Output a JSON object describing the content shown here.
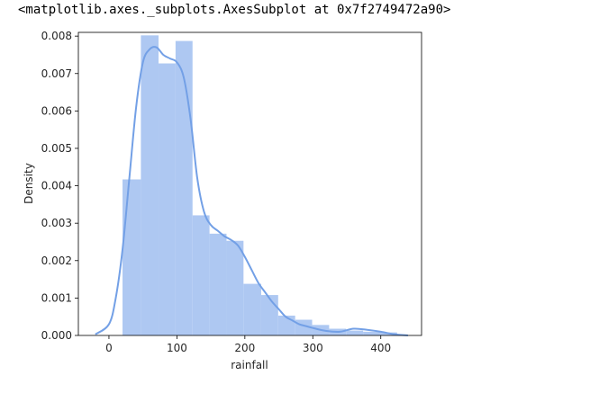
{
  "output_cell": {
    "repr_text": "<matplotlib.axes._subplots.AxesSubplot at 0x7f2749472a90>"
  },
  "colors": {
    "bar_fill": "#aec8f2",
    "kde_line": "#73a0e6",
    "axes": "#000000",
    "text": "#262626"
  },
  "chart_data": {
    "type": "bar",
    "subtype": "histogram_with_kde",
    "xlabel": "rainfall",
    "ylabel": "Density",
    "title": "",
    "xlim": [
      -45,
      460
    ],
    "ylim": [
      0,
      0.0081
    ],
    "xticks": [
      0,
      100,
      200,
      300,
      400
    ],
    "xtick_labels": [
      "0",
      "100",
      "200",
      "300",
      "400"
    ],
    "yticks": [
      0.0,
      0.001,
      0.002,
      0.003,
      0.004,
      0.005,
      0.006,
      0.007,
      0.008
    ],
    "ytick_labels": [
      "0.000",
      "0.001",
      "0.002",
      "0.003",
      "0.004",
      "0.005",
      "0.006",
      "0.007",
      "0.008"
    ],
    "bins": [
      {
        "x0": 20,
        "x1": 47,
        "density": 0.00417
      },
      {
        "x0": 47,
        "x1": 73,
        "density": 0.00802
      },
      {
        "x0": 73,
        "x1": 98,
        "density": 0.00727
      },
      {
        "x0": 98,
        "x1": 123,
        "density": 0.00787
      },
      {
        "x0": 123,
        "x1": 148,
        "density": 0.00321
      },
      {
        "x0": 148,
        "x1": 173,
        "density": 0.00272
      },
      {
        "x0": 173,
        "x1": 198,
        "density": 0.00253
      },
      {
        "x0": 198,
        "x1": 224,
        "density": 0.00138
      },
      {
        "x0": 224,
        "x1": 249,
        "density": 0.00108
      },
      {
        "x0": 249,
        "x1": 274,
        "density": 0.00053
      },
      {
        "x0": 274,
        "x1": 299,
        "density": 0.00042
      },
      {
        "x0": 299,
        "x1": 324,
        "density": 0.00028
      },
      {
        "x0": 324,
        "x1": 349,
        "density": 0.00018
      },
      {
        "x0": 349,
        "x1": 374,
        "density": 0.00013
      },
      {
        "x0": 374,
        "x1": 399,
        "density": 0.0001
      },
      {
        "x0": 399,
        "x1": 424,
        "density": 8e-05
      }
    ],
    "kde": {
      "x": [
        -20,
        0,
        10,
        20,
        30,
        40,
        50,
        60,
        70,
        80,
        90,
        100,
        110,
        120,
        130,
        140,
        150,
        160,
        170,
        180,
        190,
        200,
        210,
        220,
        230,
        240,
        250,
        260,
        270,
        280,
        290,
        300,
        320,
        340,
        360,
        380,
        400,
        420,
        440
      ],
      "y": [
        3e-05,
        0.0003,
        0.001,
        0.0023,
        0.0042,
        0.0061,
        0.0073,
        0.00765,
        0.0077,
        0.0075,
        0.0074,
        0.0073,
        0.0069,
        0.0058,
        0.0042,
        0.0033,
        0.00295,
        0.0028,
        0.00265,
        0.00255,
        0.0024,
        0.0021,
        0.00175,
        0.0014,
        0.00115,
        0.0009,
        0.0007,
        0.0005,
        0.0004,
        0.0003,
        0.00025,
        0.0002,
        0.00012,
        0.0001,
        0.00018,
        0.00015,
        0.0001,
        3e-05,
        0.0
      ]
    },
    "grid": false
  }
}
